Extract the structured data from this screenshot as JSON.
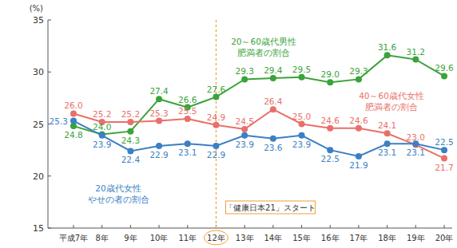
{
  "chart_data": {
    "type": "line",
    "y_label": "(%)",
    "categories": [
      "平成7年",
      "8年",
      "9年",
      "10年",
      "11年",
      "12年",
      "13年",
      "14年",
      "15年",
      "16年",
      "17年",
      "18年",
      "19年",
      "20年"
    ],
    "ylim": [
      15,
      35
    ],
    "yticks": [
      15,
      20,
      25,
      30,
      35
    ],
    "grid": false,
    "data_labels": true,
    "marker": "circle",
    "series": [
      {
        "name": "20～60歳代男性\n肥満者の割合",
        "color": "#3aa33a",
        "values": [
          24.8,
          24.0,
          24.3,
          27.4,
          26.6,
          27.6,
          29.3,
          29.4,
          29.5,
          29.0,
          29.3,
          31.6,
          31.2,
          29.6
        ]
      },
      {
        "name": "40～60歳代女性\n肥満者の割合",
        "color": "#e8706a",
        "values": [
          26.0,
          25.2,
          25.2,
          25.3,
          25.5,
          24.9,
          24.5,
          26.4,
          25.0,
          24.6,
          24.6,
          24.1,
          23.0,
          21.7
        ]
      },
      {
        "name": "20歳代女性\nやせの者の割合",
        "color": "#3b7fc4",
        "values": [
          25.3,
          23.9,
          22.4,
          22.9,
          23.1,
          22.9,
          23.9,
          23.6,
          23.9,
          22.5,
          21.9,
          23.1,
          23.1,
          22.5
        ]
      }
    ],
    "annotations": [
      {
        "text": "「健康日本21」スタート",
        "category": "12年"
      }
    ]
  }
}
